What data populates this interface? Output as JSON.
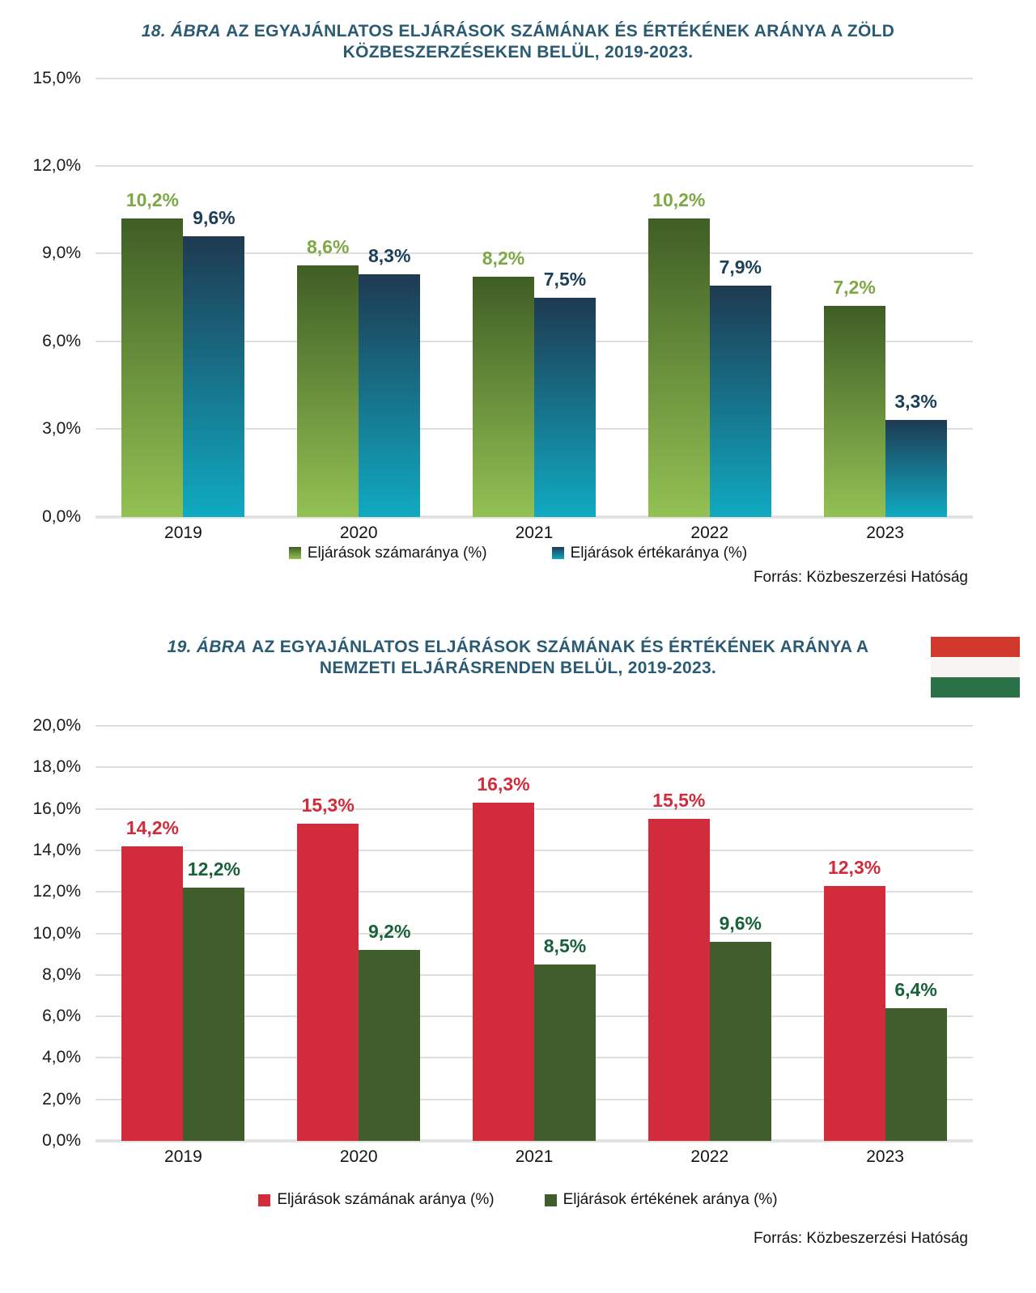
{
  "title_color": "#2a5b73",
  "figures": [
    {
      "title_prefix": "18. ÁBRA",
      "title_rest": "AZ EGYAJÁNLATOS ELJÁRÁSOK SZÁMÁNAK ÉS ÉRTÉKÉNEK ARÁNYA A ZÖLD KÖZBESZERZÉSEKEN BELÜL, 2019-2023.",
      "source": "Forrás: Közbeszerzési Hatóság"
    },
    {
      "title_prefix": "19. ÁBRA",
      "title_rest": "AZ EGYAJÁNLATOS ELJÁRÁSOK SZÁMÁNAK ÉS ÉRTÉKÉNEK ARÁNYA A NEMZETI ELJÁRÁSRENDEN BELÜL, 2019-2023.",
      "source": "Forrás: Közbeszerzési Hatóság"
    }
  ],
  "flag": {
    "label": "hungary-flag",
    "stripe_colors": [
      "#d0392c",
      "#f7f5f2",
      "#2b7147"
    ]
  },
  "chart_data": [
    {
      "type": "bar",
      "title": "18. ÁBRA AZ EGYAJÁNLATOS ELJÁRÁSOK SZÁMÁNAK ÉS ÉRTÉKÉNEK ARÁNYA A ZÖLD KÖZBESZERZÉSEKEN BELÜL, 2019-2023.",
      "categories": [
        "2019",
        "2020",
        "2021",
        "2022",
        "2023"
      ],
      "series": [
        {
          "name": "Eljárások számaránya (%)",
          "values": [
            10.2,
            8.6,
            8.2,
            10.2,
            7.2
          ],
          "value_labels": [
            "10,2%",
            "8,6%",
            "8,2%",
            "10,2%",
            "7,2%"
          ],
          "bar_color_top": "#3f5e25",
          "bar_color_bottom": "#93c153",
          "label_color": "#7da844"
        },
        {
          "name": "Eljárások értékaránya (%)",
          "values": [
            9.6,
            8.3,
            7.5,
            7.9,
            3.3
          ],
          "value_labels": [
            "9,6%",
            "8,3%",
            "7,5%",
            "7,9%",
            "3,3%"
          ],
          "bar_color_top": "#1e3a51",
          "bar_color_bottom": "#10aac2",
          "label_color": "#1d4059"
        }
      ],
      "ylim": [
        0,
        15
      ],
      "yticks": [
        0,
        3,
        6,
        9,
        12,
        15
      ],
      "ytick_labels": [
        "0,0%",
        "3,0%",
        "6,0%",
        "9,0%",
        "12,0%",
        "15,0%"
      ],
      "grid": true,
      "legend_position": "bottom"
    },
    {
      "type": "bar",
      "title": "19. ÁBRA AZ EGYAJÁNLATOS ELJÁRÁSOK SZÁMÁNAK ÉS ÉRTÉKÉNEK ARÁNYA A NEMZETI ELJÁRÁSRENDEN BELÜL, 2019-2023.",
      "categories": [
        "2019",
        "2020",
        "2021",
        "2022",
        "2023"
      ],
      "series": [
        {
          "name": "Eljárások számának aránya (%)",
          "values": [
            14.2,
            15.3,
            16.3,
            15.5,
            12.3
          ],
          "value_labels": [
            "14,2%",
            "15,3%",
            "16,3%",
            "15,5%",
            "12,3%"
          ],
          "bar_color_top": "#d22b3b",
          "bar_color_bottom": "#d22b3b",
          "label_color": "#d22b3b"
        },
        {
          "name": "Eljárások értékének aránya (%)",
          "values": [
            12.2,
            9.2,
            8.5,
            9.6,
            6.4
          ],
          "value_labels": [
            "12,2%",
            "9,2%",
            "8,5%",
            "9,6%",
            "6,4%"
          ],
          "bar_color_top": "#3f5e2b",
          "bar_color_bottom": "#3f5e2b",
          "label_color": "#186239"
        }
      ],
      "ylim": [
        0,
        20
      ],
      "yticks": [
        0,
        2,
        4,
        6,
        8,
        10,
        12,
        14,
        16,
        18,
        20
      ],
      "ytick_labels": [
        "0,0%",
        "2,0%",
        "4,0%",
        "6,0%",
        "8,0%",
        "10,0%",
        "12,0%",
        "14,0%",
        "16,0%",
        "18,0%",
        "20,0%"
      ],
      "grid": true,
      "legend_position": "bottom"
    }
  ]
}
